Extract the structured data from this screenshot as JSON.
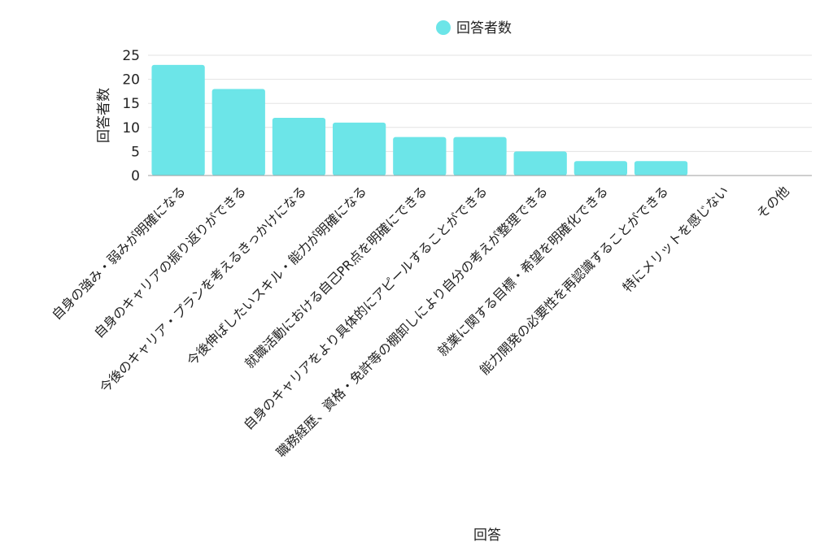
{
  "chart_data": {
    "type": "bar",
    "title": "",
    "xlabel": "回答",
    "ylabel": "回答者数",
    "ylim": [
      0,
      25
    ],
    "yticks": [
      0,
      5,
      10,
      15,
      20,
      25
    ],
    "grid": true,
    "legend_position": "top-center",
    "categories": [
      "自身の強み・弱みが明確になる",
      "自身のキャリアの振り返りができる",
      "今後のキャリア・プランを考えるきっかけになる",
      "今後伸ばしたいスキル・能力が明確になる",
      "就職活動における自己PR点を明確にできる",
      "自身のキャリアをより具体的にアピールすることができる",
      "職務経歴、資格・免許等の棚卸しにより自分の考えが整理できる",
      "就業に関する目標・希望を明確化できる",
      "能力開発の必要性を再認識することができる",
      "特にメリットを感じない",
      "その他"
    ],
    "series": [
      {
        "name": "回答者数",
        "color": "#6ce5e8",
        "values": [
          23,
          18,
          12,
          11,
          8,
          8,
          5,
          3,
          3,
          0,
          0
        ]
      }
    ]
  }
}
